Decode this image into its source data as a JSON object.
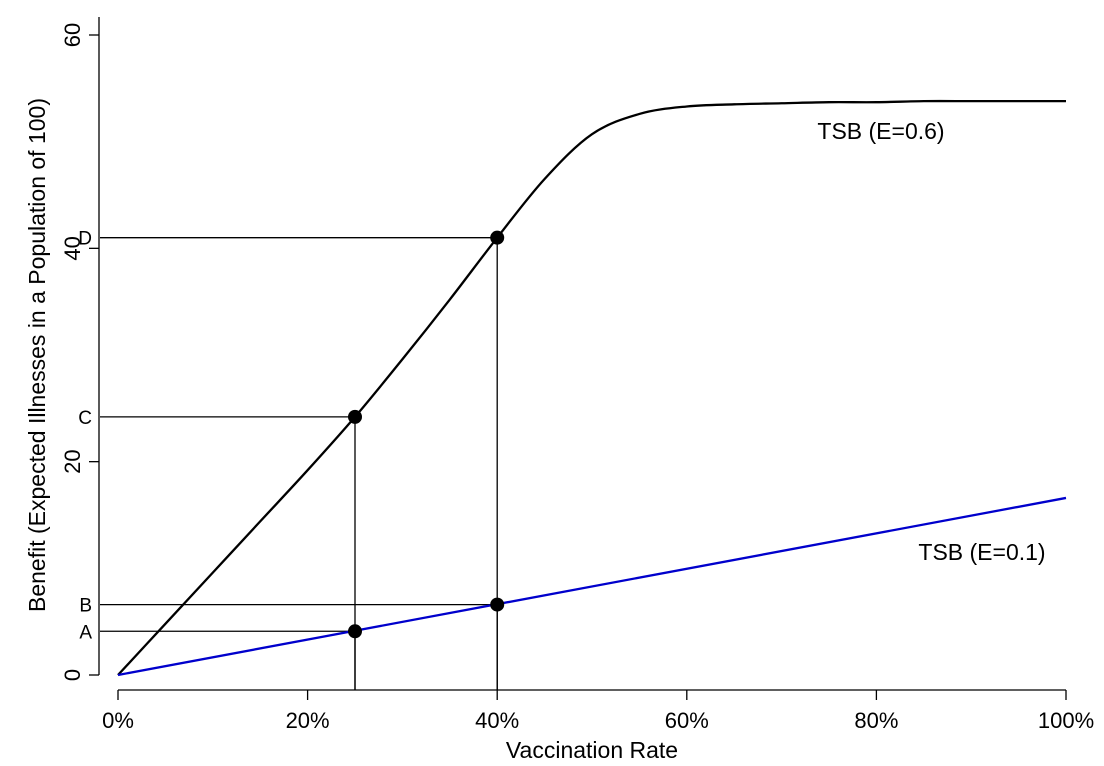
{
  "chart_data": {
    "type": "line",
    "xlabel": "Vaccination Rate",
    "ylabel": "Benefit (Expected Illnesses in a Population of 100)",
    "xlim": [
      0,
      100
    ],
    "ylim": [
      0,
      60
    ],
    "x_ticks": [
      0,
      20,
      40,
      60,
      80,
      100
    ],
    "x_tick_labels": [
      "0%",
      "20%",
      "40%",
      "60%",
      "80%",
      "100%"
    ],
    "y_ticks": [
      0,
      20,
      40,
      60
    ],
    "y_tick_labels": [
      "0",
      "20",
      "40",
      "60"
    ],
    "grid": false,
    "colors": {
      "high_efficacy": "#000000",
      "low_efficacy": "#0000cc",
      "guides": "#000000"
    },
    "series": [
      {
        "name": "TSB (E=0.6)",
        "x": [
          0,
          5,
          10,
          15,
          20,
          25,
          30,
          35,
          40,
          45,
          50,
          55,
          60,
          65,
          70,
          75,
          80,
          85,
          90,
          95,
          100
        ],
        "y": [
          0,
          4.8,
          9.6,
          14.4,
          19.2,
          24.2,
          29.6,
          35.2,
          41.0,
          46.5,
          50.7,
          52.6,
          53.3,
          53.5,
          53.6,
          53.7,
          53.7,
          53.8,
          53.8,
          53.8,
          53.8
        ]
      },
      {
        "name": "TSB (E=0.1)",
        "x": [
          0,
          100
        ],
        "y": [
          0,
          16.6
        ]
      }
    ],
    "points": [
      {
        "label": "A",
        "x": 25,
        "y": 4.1
      },
      {
        "label": "B",
        "x": 40,
        "y": 6.6
      },
      {
        "label": "C",
        "x": 25,
        "y": 24.2
      },
      {
        "label": "D",
        "x": 40,
        "y": 41.0
      }
    ]
  }
}
